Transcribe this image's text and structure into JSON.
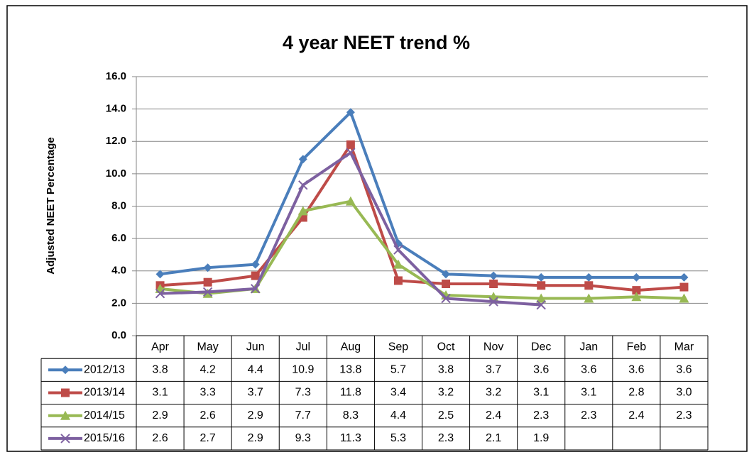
{
  "chart_data": {
    "type": "line",
    "title": "4 year NEET trend %",
    "y_label": "Adjusted NEET Percentage",
    "categories": [
      "Apr",
      "May",
      "Jun",
      "Jul",
      "Aug",
      "Sep",
      "Oct",
      "Nov",
      "Dec",
      "Jan",
      "Feb",
      "Mar"
    ],
    "series": [
      {
        "name": "2012/13",
        "color": "#4a7ebb",
        "marker": "diamond",
        "values": [
          3.8,
          4.2,
          4.4,
          10.9,
          13.8,
          5.7,
          3.8,
          3.7,
          3.6,
          3.6,
          3.6,
          3.6
        ]
      },
      {
        "name": "2013/14",
        "color": "#be4b48",
        "marker": "square",
        "values": [
          3.1,
          3.3,
          3.7,
          7.3,
          11.8,
          3.4,
          3.2,
          3.2,
          3.1,
          3.1,
          2.8,
          3.0
        ],
        "value_labels": [
          "3.1",
          "3.3",
          "3.7",
          "7.3",
          "11.8",
          "3.4",
          "3.2",
          "3.2",
          "3.1",
          "3.1",
          "2.8",
          "3.0"
        ]
      },
      {
        "name": "2014/15",
        "color": "#98b954",
        "marker": "triangle",
        "values": [
          2.9,
          2.6,
          2.9,
          7.7,
          8.3,
          4.4,
          2.5,
          2.4,
          2.3,
          2.3,
          2.4,
          2.3
        ]
      },
      {
        "name": "2015/16",
        "color": "#7d60a0",
        "marker": "x",
        "values": [
          2.6,
          2.7,
          2.9,
          9.3,
          11.3,
          5.3,
          2.3,
          2.1,
          1.9,
          null,
          null,
          null
        ]
      }
    ],
    "ylim": [
      0,
      16
    ],
    "yticks": [
      {
        "value": 0,
        "label": "0.0"
      },
      {
        "value": 2,
        "label": "2.0"
      },
      {
        "value": 4,
        "label": "4.0"
      },
      {
        "value": 6,
        "label": "6.0"
      },
      {
        "value": 8,
        "label": "8.0"
      },
      {
        "value": 10,
        "label": "10.0"
      },
      {
        "value": 12,
        "label": "12.0"
      },
      {
        "value": 14,
        "label": "14.0"
      },
      {
        "value": 16,
        "label": "16.0"
      }
    ],
    "grid": true
  }
}
